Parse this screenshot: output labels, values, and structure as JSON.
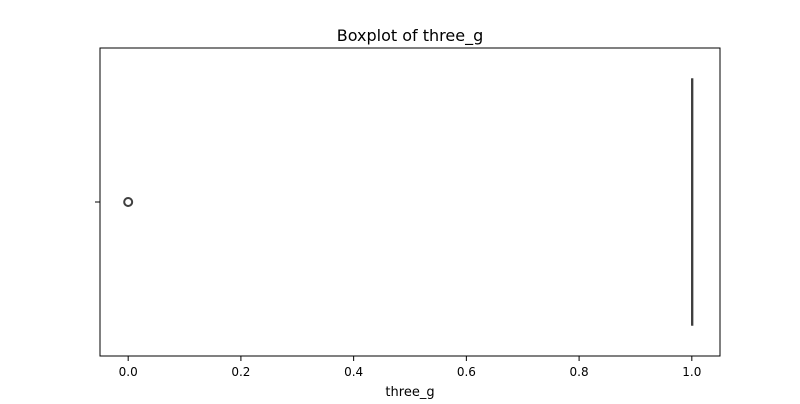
{
  "chart_data": {
    "type": "box",
    "title": "Boxplot of three_g",
    "xlabel": "three_g",
    "ylabel": "",
    "orientation": "horizontal",
    "xlim": [
      -0.05,
      1.05
    ],
    "x_ticks": [
      0.0,
      0.2,
      0.4,
      0.6,
      0.8,
      1.0
    ],
    "x_tick_labels": [
      "0.0",
      "0.2",
      "0.4",
      "0.6",
      "0.8",
      "1.0"
    ],
    "grid": false,
    "legend": "none",
    "box": {
      "min": 1.0,
      "q1": 1.0,
      "median": 1.0,
      "q3": 1.0,
      "max": 1.0
    },
    "outliers": [
      0.0
    ],
    "colors": {
      "box": "#3f3f3f",
      "outlier": "#3f3f3f",
      "axis": "#000000"
    }
  }
}
